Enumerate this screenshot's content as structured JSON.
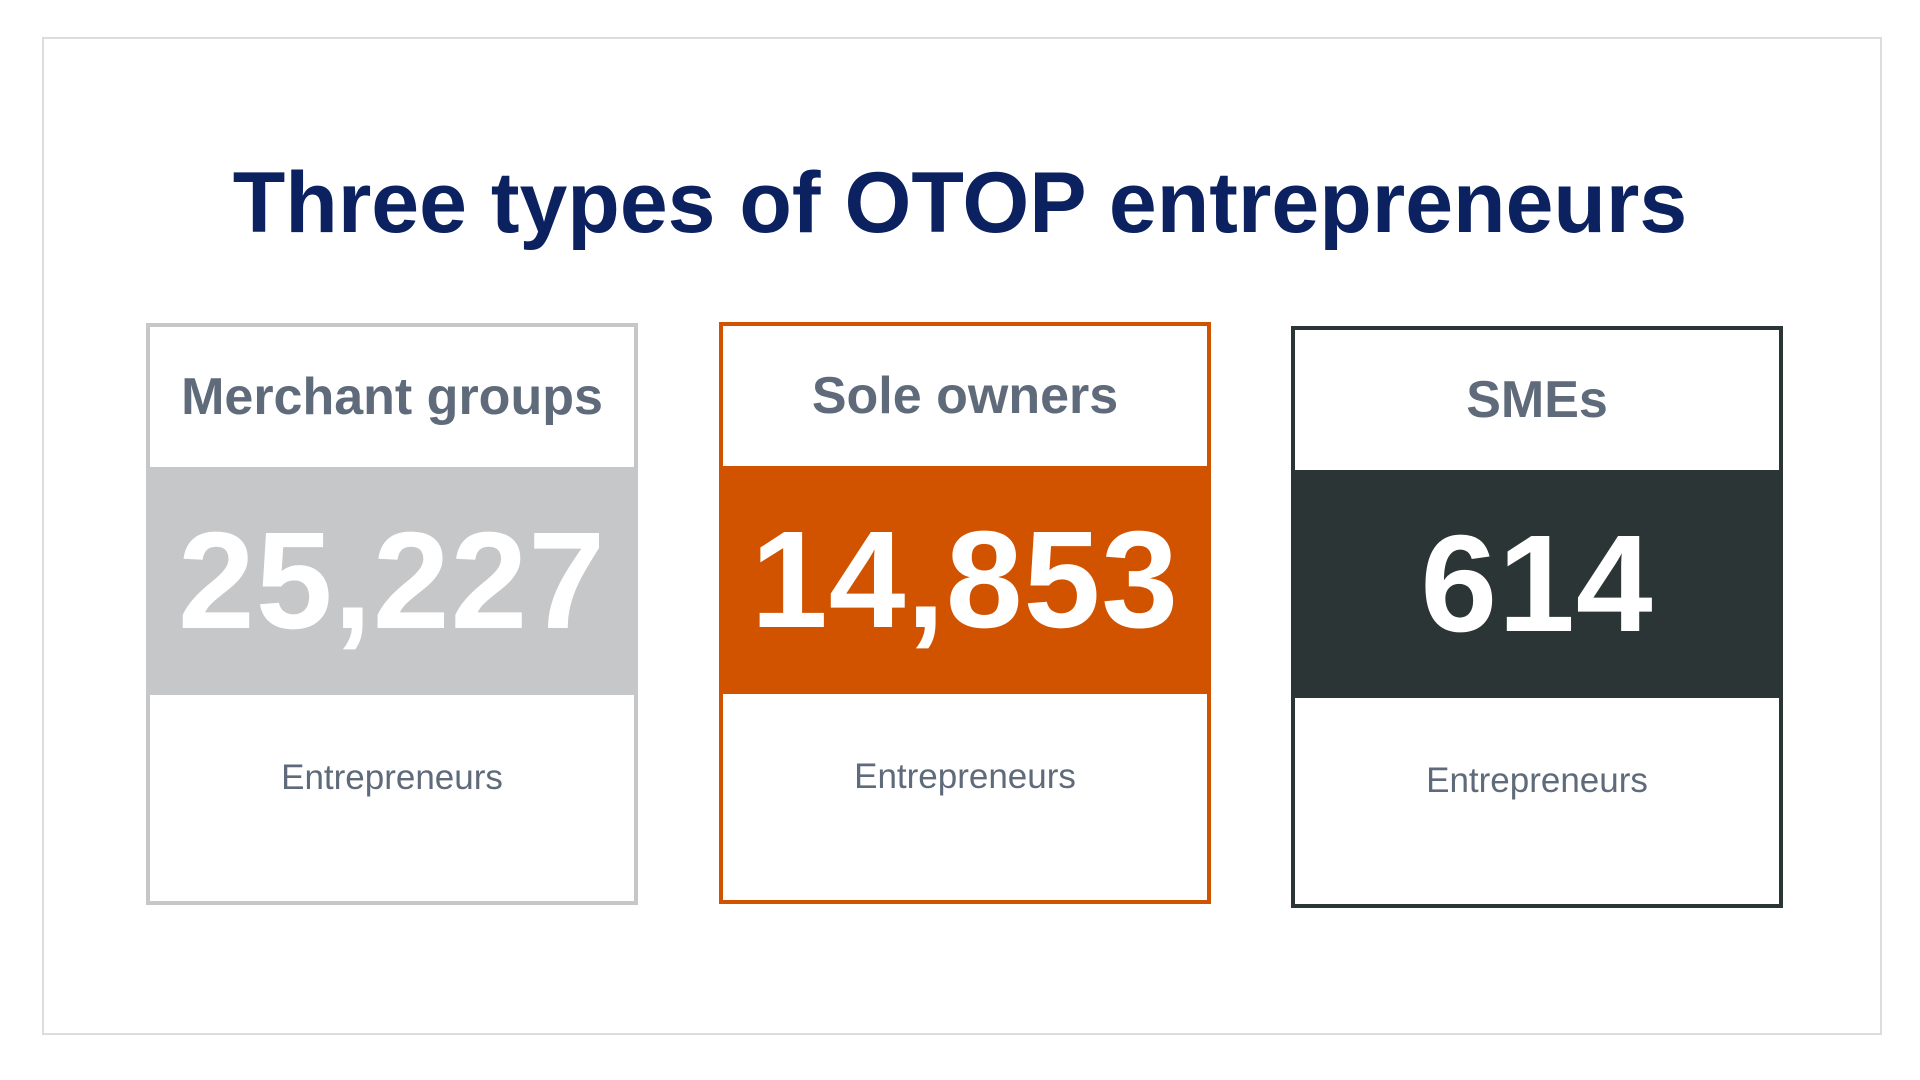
{
  "title": "Three types of OTOP entrepreneurs",
  "cards": [
    {
      "heading": "Merchant groups",
      "value": "25,227",
      "unit": "Entrepreneurs",
      "color": "#c6c7c9"
    },
    {
      "heading": "Sole owners",
      "value": "14,853",
      "unit": "Entrepreneurs",
      "color": "#d15300"
    },
    {
      "heading": "SMEs",
      "value": "614",
      "unit": "Entrepreneurs",
      "color": "#2b3536"
    }
  ],
  "colors": {
    "title": "#0b2160",
    "label_text": "#5f6b7a",
    "frame_border": "#dcdcdc"
  }
}
